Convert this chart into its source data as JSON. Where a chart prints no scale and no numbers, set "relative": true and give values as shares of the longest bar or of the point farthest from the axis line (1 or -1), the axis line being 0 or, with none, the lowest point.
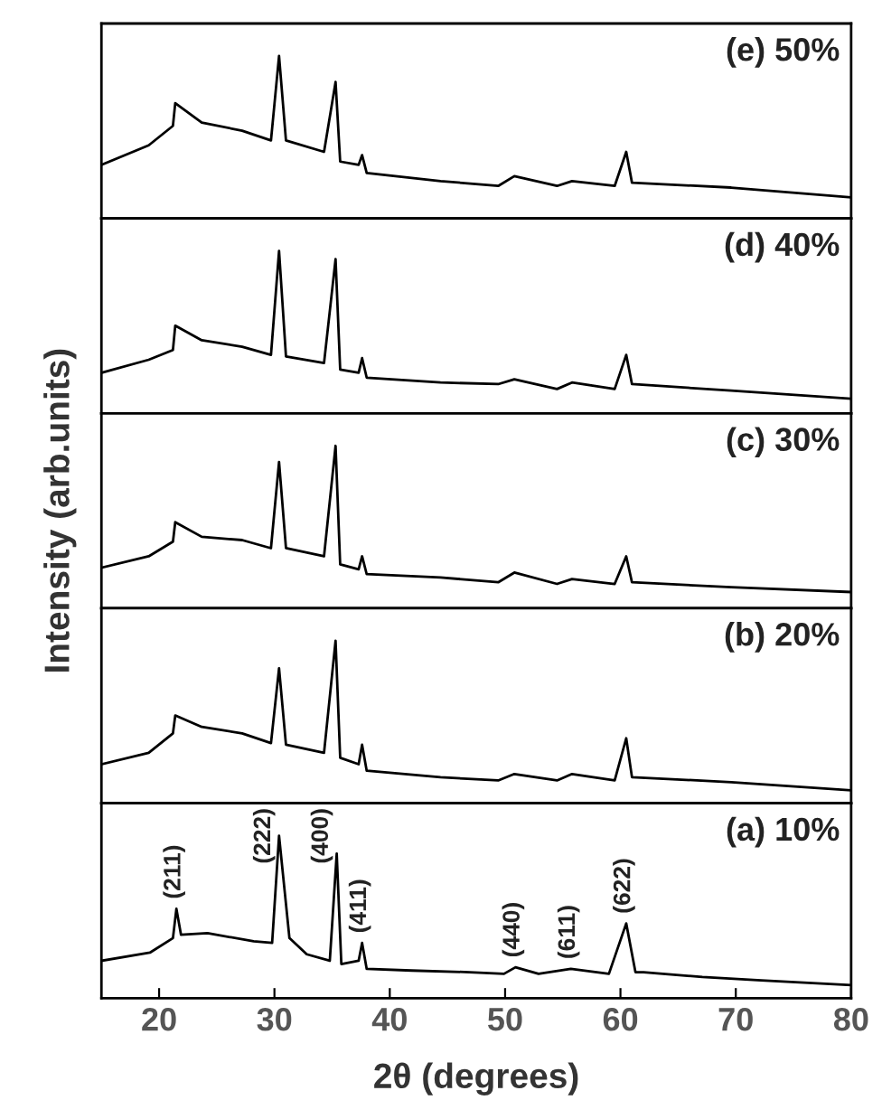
{
  "chart_data": [
    {
      "type": "line",
      "title": "(e) 50%",
      "relative": true,
      "xlim": [
        15,
        80
      ],
      "xticks": [
        20,
        30,
        40,
        50,
        60,
        70,
        80
      ],
      "tick_labels": false,
      "x": [
        15,
        19.1,
        21.2,
        21.4,
        23.7,
        27.2,
        29.7,
        30.4,
        31,
        34.3,
        35.3,
        35.7,
        37.3,
        37.6,
        38,
        44.4,
        49.4,
        50.8,
        54.5,
        55.8,
        59.5,
        60.5,
        61,
        69.6,
        80
      ],
      "series": [
        {
          "color": "#000000",
          "values": [
            0.33,
            0.45,
            0.57,
            0.71,
            0.59,
            0.54,
            0.48,
            1,
            0.48,
            0.41,
            0.84,
            0.35,
            0.33,
            0.39,
            0.28,
            0.23,
            0.2,
            0.26,
            0.2,
            0.23,
            0.2,
            0.41,
            0.22,
            0.19,
            0.13
          ]
        }
      ]
    },
    {
      "type": "line",
      "title": "(d) 40%",
      "relative": true,
      "xlim": [
        15,
        80
      ],
      "xticks": [
        20,
        30,
        40,
        50,
        60,
        70,
        80
      ],
      "tick_labels": false,
      "x": [
        15,
        19.1,
        21.2,
        21.4,
        23.7,
        27.2,
        29.7,
        30.4,
        31,
        34.3,
        35.3,
        35.7,
        37.3,
        37.6,
        38,
        44.4,
        49.4,
        50.8,
        54.5,
        55.8,
        59.5,
        60.5,
        61,
        69.6,
        80
      ],
      "series": [
        {
          "color": "#000000",
          "values": [
            0.25,
            0.33,
            0.39,
            0.54,
            0.45,
            0.41,
            0.36,
            1,
            0.35,
            0.31,
            0.95,
            0.27,
            0.25,
            0.34,
            0.22,
            0.19,
            0.18,
            0.21,
            0.15,
            0.19,
            0.15,
            0.36,
            0.18,
            0.14,
            0.09
          ]
        }
      ]
    },
    {
      "type": "line",
      "title": "(c) 30%",
      "ylabel": "Intensity (arb.units)",
      "relative": true,
      "xlim": [
        15,
        80
      ],
      "xticks": [
        20,
        30,
        40,
        50,
        60,
        70,
        80
      ],
      "tick_labels": false,
      "x": [
        15,
        19.1,
        21.2,
        21.4,
        23.7,
        27.2,
        29.7,
        30.4,
        31,
        34.3,
        35.3,
        35.7,
        37.3,
        37.6,
        38,
        44.4,
        49.4,
        50.8,
        54.5,
        55.8,
        59.5,
        60.5,
        61,
        69.6,
        80
      ],
      "series": [
        {
          "color": "#000000",
          "values": [
            0.25,
            0.32,
            0.41,
            0.53,
            0.44,
            0.42,
            0.37,
            0.9,
            0.37,
            0.32,
            1,
            0.27,
            0.24,
            0.32,
            0.21,
            0.19,
            0.16,
            0.22,
            0.15,
            0.18,
            0.15,
            0.32,
            0.16,
            0.13,
            0.1
          ]
        }
      ]
    },
    {
      "type": "line",
      "title": "(b) 20%",
      "relative": true,
      "xlim": [
        15,
        80
      ],
      "xticks": [
        20,
        30,
        40,
        50,
        60,
        70,
        80
      ],
      "tick_labels": false,
      "x": [
        15,
        19.1,
        21.2,
        21.4,
        23.7,
        27.2,
        29.7,
        30.4,
        31,
        34.3,
        35.3,
        35.7,
        37.3,
        37.6,
        38,
        44.4,
        49.4,
        50.8,
        54.5,
        55.8,
        59.5,
        60.5,
        61,
        69.6,
        80
      ],
      "series": [
        {
          "color": "#000000",
          "values": [
            0.24,
            0.31,
            0.43,
            0.54,
            0.47,
            0.43,
            0.37,
            0.83,
            0.36,
            0.31,
            1,
            0.28,
            0.24,
            0.36,
            0.2,
            0.16,
            0.14,
            0.18,
            0.14,
            0.18,
            0.14,
            0.4,
            0.16,
            0.13,
            0.08
          ]
        }
      ]
    },
    {
      "type": "line",
      "title": "(a) 10%",
      "xlabel": "2θ (degrees)",
      "relative": true,
      "xlim": [
        15,
        80
      ],
      "xticks": [
        20,
        30,
        40,
        50,
        60,
        70,
        80
      ],
      "tick_labels": "x",
      "x": [
        15,
        19.2,
        21.2,
        21.5,
        21.9,
        24.2,
        28.2,
        29.8,
        30.4,
        31.3,
        32.8,
        34.8,
        35.4,
        35.8,
        37.3,
        37.6,
        38,
        41.9,
        46.9,
        49.9,
        50.9,
        52.9,
        55.7,
        59,
        60.5,
        61.3,
        62,
        67.1,
        72.2,
        80
      ],
      "series": [
        {
          "color": "#000000",
          "values": [
            0.23,
            0.28,
            0.37,
            0.55,
            0.39,
            0.4,
            0.35,
            0.34,
            1,
            0.37,
            0.27,
            0.23,
            0.89,
            0.21,
            0.23,
            0.34,
            0.18,
            0.17,
            0.16,
            0.15,
            0.19,
            0.15,
            0.18,
            0.15,
            0.46,
            0.16,
            0.16,
            0.13,
            0.11,
            0.08
          ]
        }
      ],
      "annotations": [
        {
          "text": "(211)",
          "x": 21.5,
          "y": 0.55
        },
        {
          "text": "(222)",
          "x": 30.4,
          "y": 1
        },
        {
          "text": "(400)",
          "x": 35.4,
          "y": 0.89
        },
        {
          "text": "(411)",
          "x": 37.6,
          "y": 0.34
        },
        {
          "text": "(440)",
          "x": 50.9,
          "y": 0.19
        },
        {
          "text": "(611)",
          "x": 55.7,
          "y": 0.18
        },
        {
          "text": "(622)",
          "x": 60.5,
          "y": 0.46
        }
      ]
    }
  ]
}
